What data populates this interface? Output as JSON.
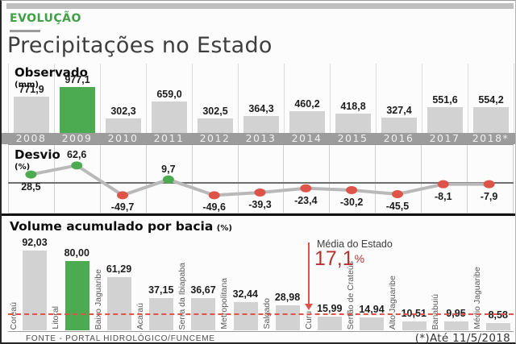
{
  "kicker": "EVOLUÇÃO",
  "title": "Precipitações no Estado",
  "footer": {
    "source": "FONTE - PORTAL HIDROLÓGICO/FUNCEME",
    "note": "(*)Até 11/5/2018"
  },
  "colors": {
    "accent_green": "#4caa50",
    "bar_gray": "#d2d2d2",
    "negative_red": "#de5449",
    "media_red": "#b5332d",
    "year_band_gray": "#9c9c9c"
  },
  "chart_data": [
    {
      "type": "bar",
      "title": "Observado",
      "unit": "(mm)",
      "categories": [
        "2008",
        "2009",
        "2010",
        "2011",
        "2012",
        "2013",
        "2014",
        "2015",
        "2016",
        "2017",
        "2018*"
      ],
      "values": [
        771.9,
        977.1,
        302.3,
        659.0,
        302.5,
        364.3,
        460.2,
        418.8,
        327.4,
        551.6,
        554.2
      ],
      "decimals": 1,
      "highlight_index": 1,
      "bar_color": "#d2d2d2",
      "highlight_color": "#4caa50",
      "grid": true
    },
    {
      "type": "line",
      "title": "Desvio",
      "unit": "(%)",
      "categories": [
        "2008",
        "2009",
        "2010",
        "2011",
        "2012",
        "2013",
        "2014",
        "2015",
        "2016",
        "2017",
        "2018*"
      ],
      "values": [
        28.5,
        62.6,
        -49.7,
        9.7,
        -49.6,
        -39.3,
        -23.4,
        -30.2,
        -45.5,
        -8.1,
        -7.9
      ],
      "decimals": 1,
      "zero_line": true,
      "line_color": "#b9b9b9",
      "positive_color": "#4caa50",
      "negative_color": "#de5449",
      "grid": true
    },
    {
      "type": "bar",
      "title": "Volume acumulado por bacia",
      "unit": "(%)",
      "categories": [
        "Coreaú",
        "Litoral",
        "Baixo Jaguaribe",
        "Acaraú",
        "Serra da Ibiapaba",
        "Metropolitana",
        "Salgado",
        "Curu",
        "Sertão de Crateús",
        "Alto Jaguaribe",
        "Banabuiú",
        "Médio Jaguaribe"
      ],
      "values": [
        92.03,
        80.0,
        61.29,
        37.15,
        36.67,
        32.44,
        28.98,
        15.99,
        14.94,
        10.51,
        9.95,
        8.58
      ],
      "decimals": 2,
      "highlight_index": 1,
      "bar_color": "#d2d2d2",
      "highlight_color": "#4caa50",
      "reference_line": {
        "label": "Média do Estado",
        "value": 17.1,
        "display": "17,1",
        "unit": "%",
        "color": "#de5449"
      },
      "grid": false
    }
  ]
}
